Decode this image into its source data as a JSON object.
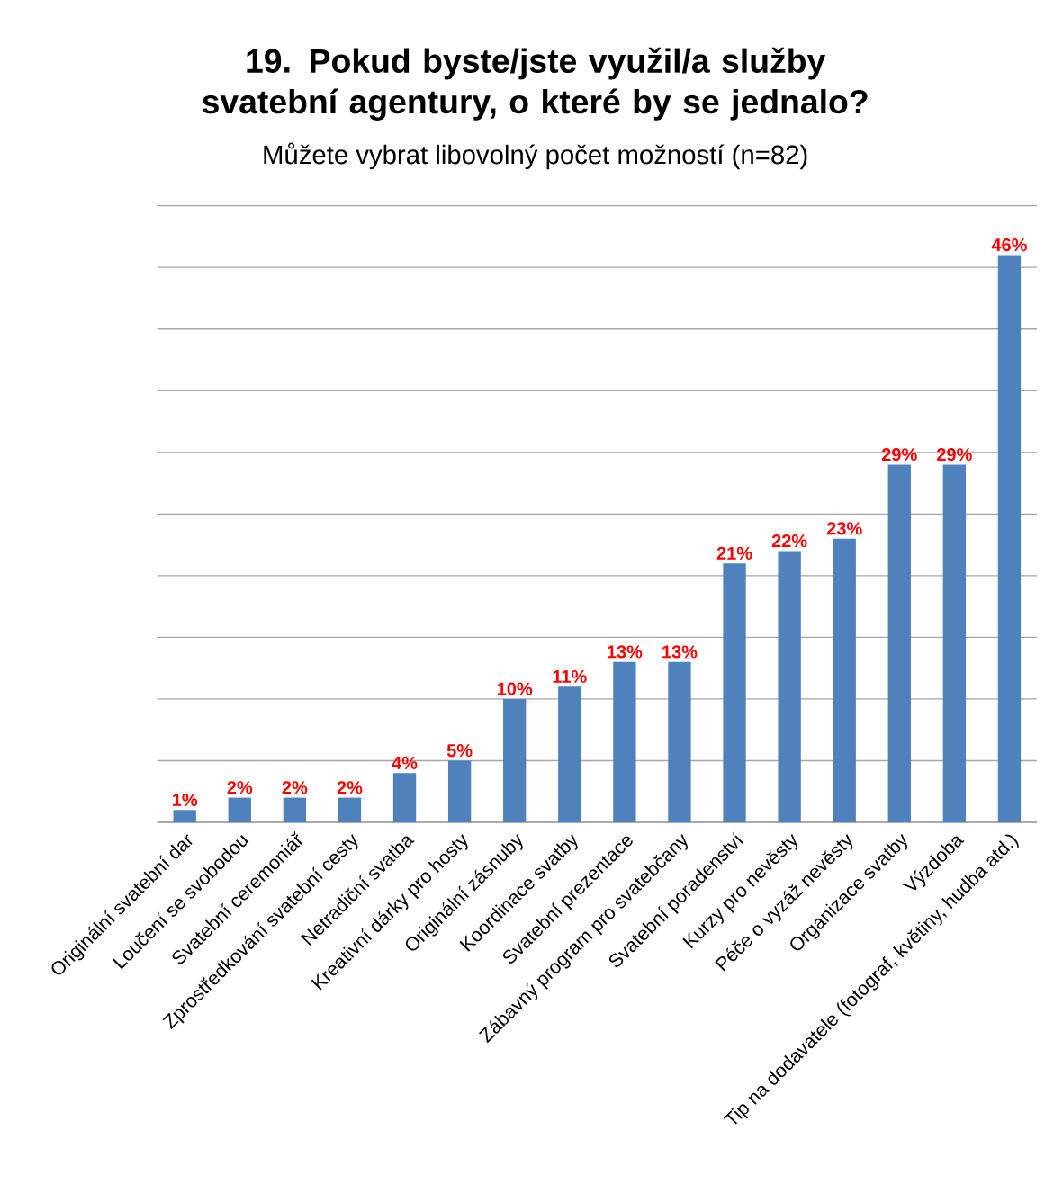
{
  "chart_data": {
    "type": "bar",
    "title": "19. Pokud byste/jste využil/a služby svatební agentury, o které by se jednalo?",
    "subtitle": "Můžete vybrat libovolný počet možností (n=82)",
    "categories": [
      "Originální svatební dar",
      "Loučení se svobodou",
      "Svatební ceremoniář",
      "Zprostředkování svatební cesty",
      "Netradiční svatba",
      "Kreativní dárky pro hosty",
      "Originální zásnuby",
      "Koordinace svatby",
      "Svatební prezentace",
      "Zábavný program pro svatebčany",
      "Svatební poradenství",
      "Kurzy pro nevěsty",
      "Péče o vyzáž nevěsty",
      "Organizace svatby",
      "Výzdoba",
      "Tip na dodavatele (fotograf, květiny, hudba atd.)"
    ],
    "values": [
      1,
      2,
      2,
      2,
      4,
      5,
      10,
      11,
      13,
      13,
      21,
      22,
      23,
      29,
      29,
      46
    ],
    "value_labels": [
      "1%",
      "2%",
      "2%",
      "2%",
      "4%",
      "5%",
      "10%",
      "11%",
      "13%",
      "13%",
      "21%",
      "22%",
      "23%",
      "29%",
      "29%",
      "46%"
    ],
    "color": "#4f81bd",
    "ylim": [
      0,
      50
    ],
    "yticks": [
      {
        "value": 0,
        "label": null
      },
      {
        "value": 5,
        "label": null
      },
      {
        "value": 10,
        "label": null
      },
      {
        "value": 15,
        "label": null
      },
      {
        "value": 20,
        "label": null
      },
      {
        "value": 25,
        "label": null
      },
      {
        "value": 30,
        "label": null
      },
      {
        "value": 35,
        "label": null
      },
      {
        "value": 40,
        "label": null
      },
      {
        "value": 45,
        "label": null
      },
      {
        "value": 50,
        "label": null
      }
    ],
    "tick_labels": "x",
    "grid": "y"
  }
}
